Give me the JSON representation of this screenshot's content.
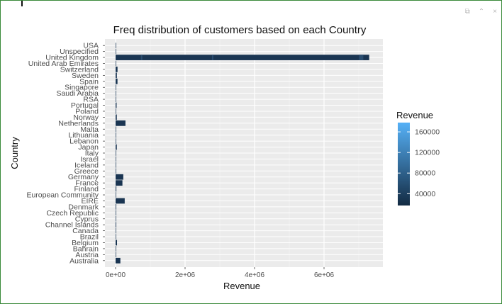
{
  "window_controls": {
    "export_icon": "⧉",
    "collapse_icon": "⌃",
    "close_icon": "×"
  },
  "chart_data": {
    "type": "bar",
    "orientation": "horizontal",
    "title": "Freq distribution of customers based on each Country",
    "xlabel": "Revenue",
    "ylabel": "Country",
    "xlim": [
      0,
      7400000
    ],
    "x_ticks": [
      {
        "value": 0,
        "label": "0e+00"
      },
      {
        "value": 2000000,
        "label": "2e+06"
      },
      {
        "value": 4000000,
        "label": "4e+06"
      },
      {
        "value": 6000000,
        "label": "6e+06"
      }
    ],
    "categories": [
      "Australia",
      "Austria",
      "Bahrain",
      "Belgium",
      "Brazil",
      "Canada",
      "Channel Islands",
      "Cyprus",
      "Czech Republic",
      "Denmark",
      "EIRE",
      "European Community",
      "Finland",
      "France",
      "Germany",
      "Greece",
      "Iceland",
      "Israel",
      "Italy",
      "Japan",
      "Lebanon",
      "Lithuania",
      "Malta",
      "Netherlands",
      "Norway",
      "Poland",
      "Portugal",
      "RSA",
      "Saudi Arabia",
      "Singapore",
      "Spain",
      "Sweden",
      "Switzerland",
      "United Arab Emirates",
      "United Kingdom",
      "Unspecified",
      "USA"
    ],
    "values": [
      138000,
      10000,
      5000,
      41000,
      1000,
      3000,
      20000,
      13000,
      700,
      19000,
      263000,
      1000,
      22000,
      197000,
      222000,
      4700,
      4300,
      7900,
      17000,
      35000,
      1700,
      1600,
      2500,
      285000,
      35000,
      7200,
      29000,
      1000,
      100,
      9100,
      55000,
      37000,
      56000,
      1900,
      7300000,
      2700,
      1700
    ],
    "legend": {
      "title": "Revenue",
      "position": "right",
      "type": "gradient",
      "ticks": [
        "40000",
        "80000",
        "120000",
        "160000"
      ],
      "color_low": "#132b43",
      "color_high": "#56b1f7"
    },
    "grid": true,
    "panel_background": "#ebebeb",
    "bar_color": "#1a3552",
    "bar_highlight_color": "#2a4d70"
  }
}
